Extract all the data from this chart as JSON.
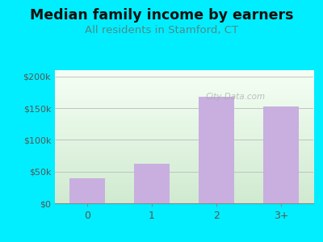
{
  "categories": [
    "0",
    "1",
    "2",
    "3+"
  ],
  "values": [
    40000,
    63000,
    168000,
    153000
  ],
  "bar_color": "#c9aee0",
  "title": "Median family income by earners",
  "subtitle": "All residents in Stamford, CT",
  "title_fontsize": 12.5,
  "subtitle_fontsize": 9.5,
  "title_color": "#111111",
  "subtitle_color": "#4d8a8a",
  "outer_bg": "#00eeff",
  "plot_bg_top": "#f5fff5",
  "plot_bg_bottom": "#d0ead0",
  "ylim": [
    0,
    210000
  ],
  "yticks": [
    0,
    50000,
    100000,
    150000,
    200000
  ],
  "ytick_labels": [
    "$0",
    "$50k",
    "$100k",
    "$150k",
    "$200k"
  ],
  "watermark": "City-Data.com",
  "tick_color": "#555555"
}
